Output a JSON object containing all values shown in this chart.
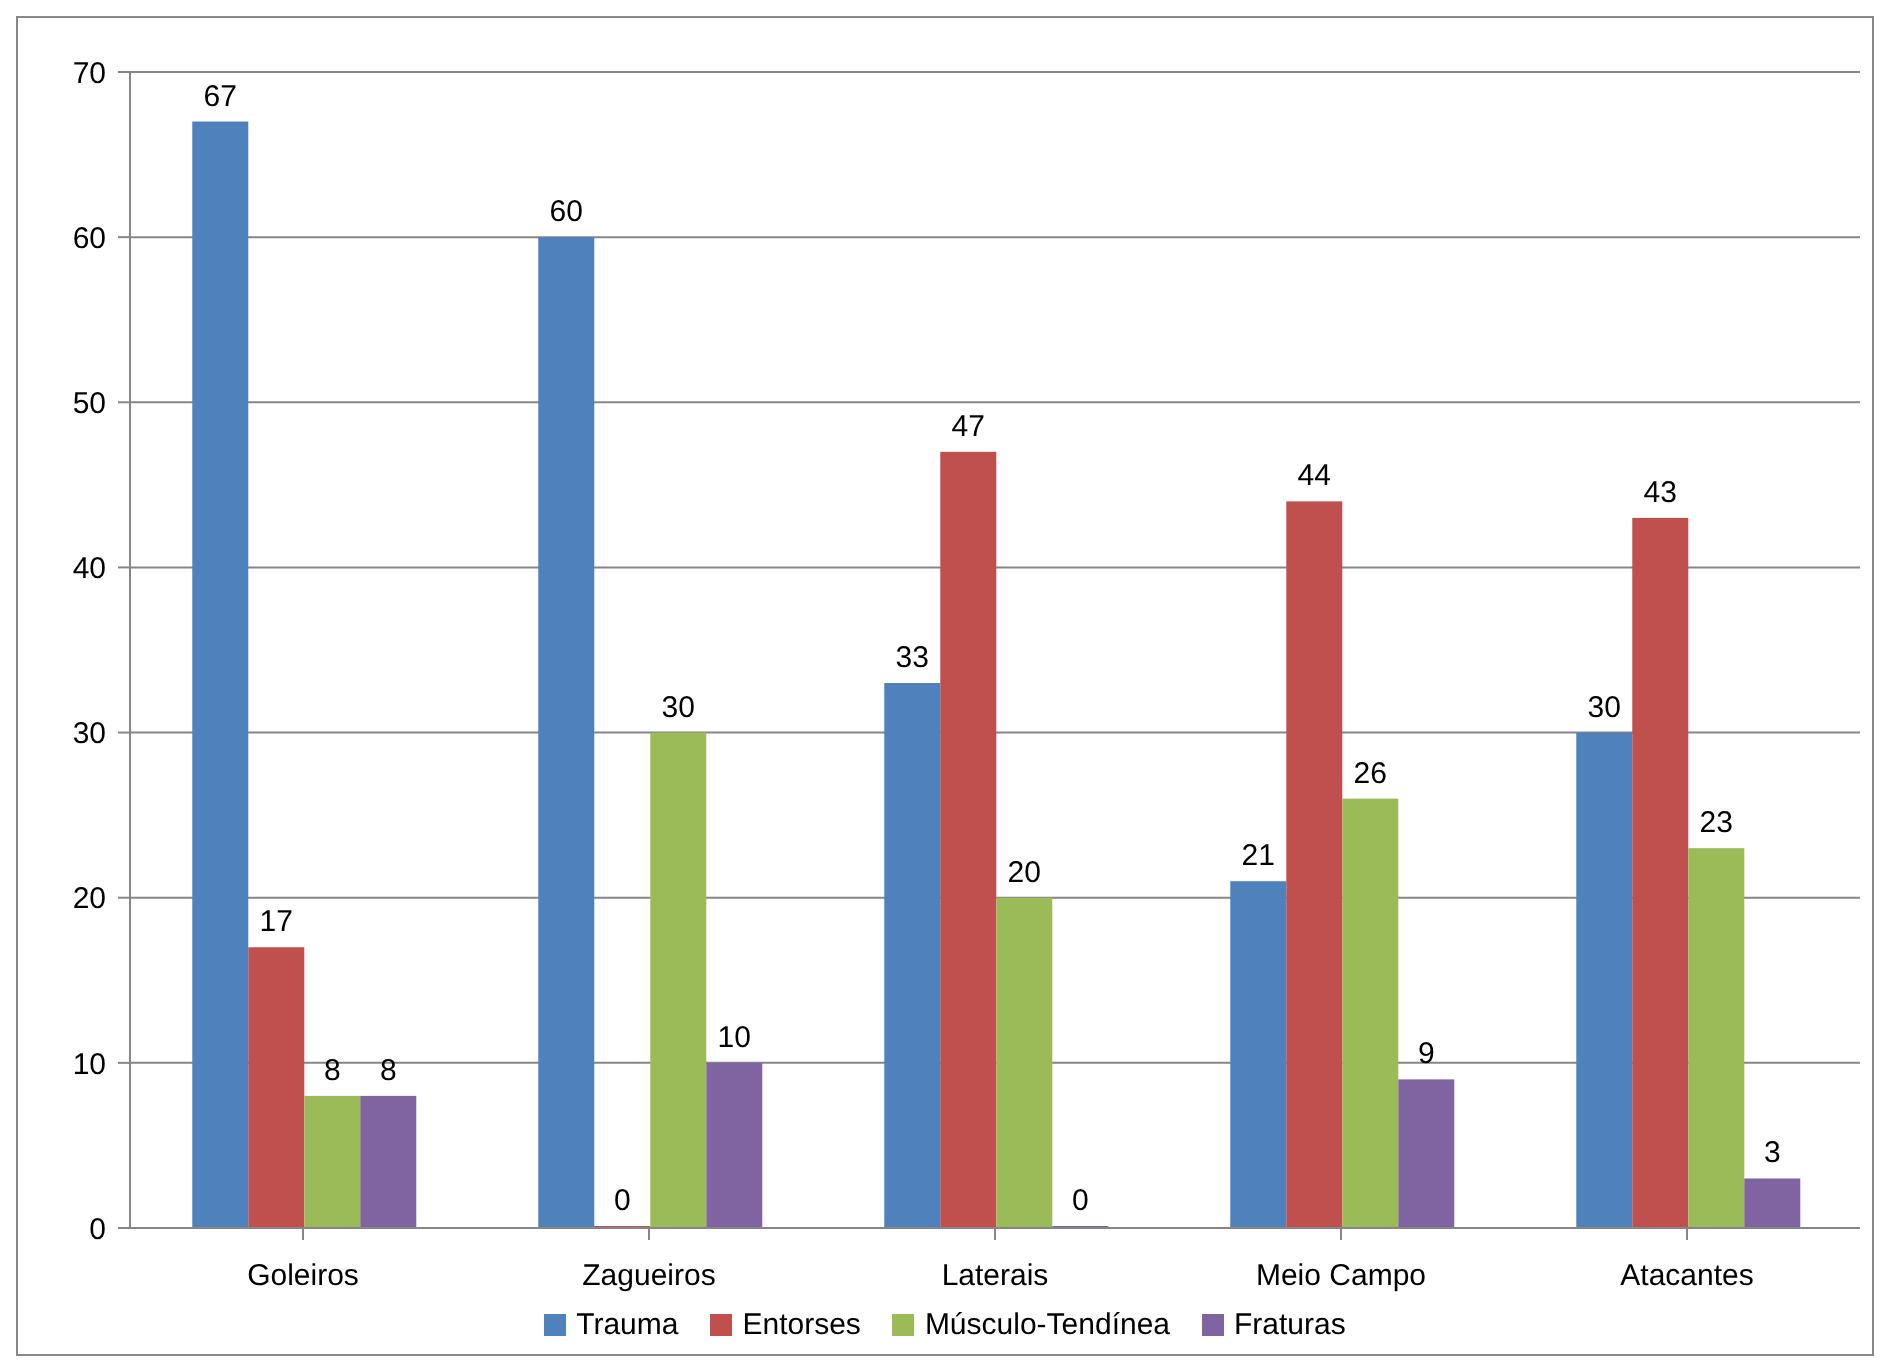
{
  "chart_data": {
    "type": "bar",
    "categories": [
      "Goleiros",
      "Zagueiros",
      "Laterais",
      "Meio Campo",
      "Atacantes"
    ],
    "series": [
      {
        "name": "Trauma",
        "color": "#4f81bd",
        "values": [
          67,
          60,
          33,
          21,
          30
        ]
      },
      {
        "name": "Entorses",
        "color": "#c0504d",
        "values": [
          17,
          0,
          47,
          44,
          43
        ]
      },
      {
        "name": "Músculo-Tendínea",
        "color": "#9bbb59",
        "values": [
          8,
          30,
          20,
          26,
          23
        ]
      },
      {
        "name": "Fraturas",
        "color": "#8064a2",
        "values": [
          8,
          10,
          0,
          9,
          3
        ]
      }
    ],
    "ylim": [
      0,
      70
    ],
    "yticks": [
      0,
      10,
      20,
      30,
      40,
      50,
      60,
      70
    ],
    "grid": "y",
    "legend": "bottom",
    "data_labels": true
  }
}
